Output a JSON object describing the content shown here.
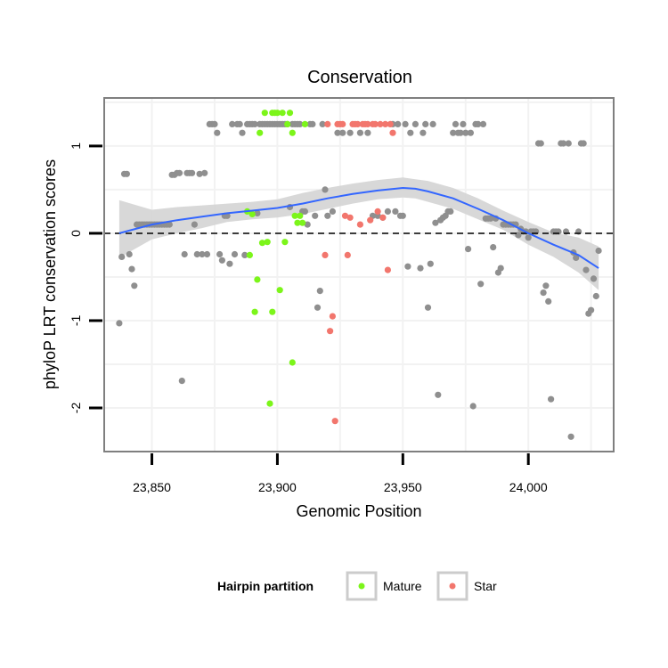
{
  "chart_data": {
    "type": "scatter",
    "title": "Conservation",
    "xlabel": "Genomic Position",
    "ylabel": "phyloP LRT conservation scores",
    "xlim": [
      23831,
      24034
    ],
    "ylim": [
      -2.5,
      1.55
    ],
    "x_ticks": [
      23850,
      23900,
      23950,
      24000
    ],
    "x_tick_labels": [
      "23,850",
      "23,900",
      "23,950",
      "24,000"
    ],
    "y_ticks": [
      1,
      0,
      -1,
      -2
    ],
    "y_tick_labels": [
      "1",
      "0",
      "-1",
      "-2"
    ],
    "grid": true,
    "reference_line": {
      "y": 0,
      "style": "dashed"
    },
    "legend": {
      "title": "Hairpin partition",
      "position": "bottom",
      "entries": [
        "Mature",
        "Star"
      ]
    },
    "colors": {
      "other": "#8f8f8f",
      "Mature": "#7cf51a",
      "Star": "#f2766d",
      "smooth": "#3366ff",
      "ribbon": "#d4d4d4",
      "panel_border": "#7f7f7f",
      "grid": "#f2f2f2"
    },
    "series": [
      {
        "group": "other",
        "points": [
          [
            23837,
            -1.03
          ],
          [
            23838,
            -0.27
          ],
          [
            23839,
            0.68
          ],
          [
            23840,
            0.68
          ],
          [
            23841,
            -0.24
          ],
          [
            23842,
            -0.41
          ],
          [
            23843,
            -0.6
          ],
          [
            23844,
            0.1
          ],
          [
            23845,
            0.1
          ],
          [
            23846,
            0.1
          ],
          [
            23847,
            0.1
          ],
          [
            23848,
            0.1
          ],
          [
            23849,
            0.1
          ],
          [
            23850,
            0.1
          ],
          [
            23851,
            0.1
          ],
          [
            23852,
            0.1
          ],
          [
            23853,
            0.1
          ],
          [
            23854,
            0.1
          ],
          [
            23855,
            0.1
          ],
          [
            23856,
            0.1
          ],
          [
            23857,
            0.1
          ],
          [
            23858,
            0.67
          ],
          [
            23859,
            0.67
          ],
          [
            23860,
            0.69
          ],
          [
            23861,
            0.69
          ],
          [
            23862,
            -1.69
          ],
          [
            23863,
            -0.24
          ],
          [
            23864,
            0.69
          ],
          [
            23865,
            0.69
          ],
          [
            23866,
            0.69
          ],
          [
            23867,
            0.1
          ],
          [
            23868,
            -0.24
          ],
          [
            23869,
            0.68
          ],
          [
            23870,
            -0.24
          ],
          [
            23871,
            0.69
          ],
          [
            23872,
            -0.24
          ],
          [
            23873,
            1.25
          ],
          [
            23874,
            1.25
          ],
          [
            23875,
            1.25
          ],
          [
            23876,
            1.15
          ],
          [
            23877,
            -0.24
          ],
          [
            23878,
            -0.31
          ],
          [
            23879,
            0.2
          ],
          [
            23880,
            0.2
          ],
          [
            23881,
            -0.35
          ],
          [
            23882,
            1.25
          ],
          [
            23883,
            -0.24
          ],
          [
            23884,
            1.25
          ],
          [
            23885,
            1.25
          ],
          [
            23886,
            1.15
          ],
          [
            23887,
            -0.25
          ],
          [
            23888,
            1.25
          ],
          [
            23889,
            1.25
          ],
          [
            23890,
            1.25
          ],
          [
            23891,
            1.25
          ],
          [
            23892,
            0.23
          ],
          [
            23893,
            1.25
          ],
          [
            23894,
            1.25
          ],
          [
            23895,
            1.25
          ],
          [
            23896,
            1.25
          ],
          [
            23897,
            1.25
          ],
          [
            23898,
            1.25
          ],
          [
            23899,
            1.25
          ],
          [
            23900,
            1.25
          ],
          [
            23901,
            1.25
          ],
          [
            23902,
            1.25
          ],
          [
            23903,
            1.25
          ],
          [
            23904,
            1.25
          ],
          [
            23905,
            0.3
          ],
          [
            23906,
            1.25
          ],
          [
            23907,
            1.25
          ],
          [
            23908,
            1.25
          ],
          [
            23909,
            1.25
          ],
          [
            23910,
            0.25
          ],
          [
            23911,
            0.25
          ],
          [
            23912,
            0.1
          ],
          [
            23913,
            1.25
          ],
          [
            23914,
            1.25
          ],
          [
            23915,
            0.2
          ],
          [
            23916,
            -0.85
          ],
          [
            23917,
            -0.66
          ],
          [
            23918,
            1.25
          ],
          [
            23919,
            0.5
          ],
          [
            23920,
            0.2
          ],
          [
            23922,
            0.25
          ],
          [
            23924,
            1.15
          ],
          [
            23926,
            1.15
          ],
          [
            23929,
            1.15
          ],
          [
            23933,
            1.15
          ],
          [
            23936,
            1.15
          ],
          [
            23938,
            0.2
          ],
          [
            23940,
            0.2
          ],
          [
            23942,
            0.18
          ],
          [
            23944,
            0.25
          ],
          [
            23946,
            1.25
          ],
          [
            23947,
            0.25
          ],
          [
            23948,
            1.25
          ],
          [
            23949,
            0.2
          ],
          [
            23950,
            0.2
          ],
          [
            23951,
            1.25
          ],
          [
            23952,
            -0.38
          ],
          [
            23953,
            1.15
          ],
          [
            23955,
            1.25
          ],
          [
            23957,
            -0.4
          ],
          [
            23958,
            1.15
          ],
          [
            23959,
            1.25
          ],
          [
            23960,
            -0.85
          ],
          [
            23961,
            -0.35
          ],
          [
            23962,
            1.25
          ],
          [
            23963,
            0.12
          ],
          [
            23964,
            -1.85
          ],
          [
            23965,
            0.15
          ],
          [
            23966,
            0.18
          ],
          [
            23967,
            0.2
          ],
          [
            23968,
            0.25
          ],
          [
            23969,
            0.25
          ],
          [
            23970,
            1.15
          ],
          [
            23971,
            1.25
          ],
          [
            23972,
            1.15
          ],
          [
            23973,
            1.15
          ],
          [
            23974,
            1.25
          ],
          [
            23975,
            1.15
          ],
          [
            23976,
            -0.18
          ],
          [
            23977,
            1.15
          ],
          [
            23978,
            -1.98
          ],
          [
            23979,
            1.25
          ],
          [
            23980,
            1.25
          ],
          [
            23981,
            -0.58
          ],
          [
            23982,
            1.25
          ],
          [
            23983,
            0.17
          ],
          [
            23984,
            0.17
          ],
          [
            23985,
            0.17
          ],
          [
            23986,
            -0.16
          ],
          [
            23987,
            0.17
          ],
          [
            23988,
            -0.45
          ],
          [
            23989,
            -0.4
          ],
          [
            23990,
            0.1
          ],
          [
            23991,
            0.1
          ],
          [
            23992,
            0.1
          ],
          [
            23993,
            0.1
          ],
          [
            23994,
            0.1
          ],
          [
            23995,
            0.1
          ],
          [
            23996,
            -0.02
          ],
          [
            23997,
            0.05
          ],
          [
            23998,
            0.02
          ],
          [
            23999,
            0.02
          ],
          [
            24000,
            -0.05
          ],
          [
            24001,
            0.02
          ],
          [
            24002,
            0.02
          ],
          [
            24003,
            0.02
          ],
          [
            24004,
            1.03
          ],
          [
            24005,
            1.03
          ],
          [
            24006,
            -0.68
          ],
          [
            24007,
            -0.6
          ],
          [
            24008,
            -0.78
          ],
          [
            24009,
            -1.9
          ],
          [
            24010,
            0.02
          ],
          [
            24011,
            0.02
          ],
          [
            24012,
            0.02
          ],
          [
            24013,
            1.03
          ],
          [
            24014,
            1.03
          ],
          [
            24015,
            0.02
          ],
          [
            24016,
            1.03
          ],
          [
            24017,
            -2.33
          ],
          [
            24018,
            -0.22
          ],
          [
            24019,
            -0.28
          ],
          [
            24020,
            0.02
          ],
          [
            24021,
            1.03
          ],
          [
            24022,
            1.03
          ],
          [
            24023,
            -0.42
          ],
          [
            24024,
            -0.92
          ],
          [
            24025,
            -0.88
          ],
          [
            24026,
            -0.52
          ],
          [
            24027,
            -0.72
          ],
          [
            24028,
            -0.2
          ]
        ]
      },
      {
        "group": "Mature",
        "name": "Mature",
        "points": [
          [
            23888,
            0.25
          ],
          [
            23889,
            -0.25
          ],
          [
            23890,
            0.22
          ],
          [
            23891,
            -0.9
          ],
          [
            23892,
            -0.53
          ],
          [
            23893,
            1.15
          ],
          [
            23894,
            -0.11
          ],
          [
            23895,
            1.38
          ],
          [
            23896,
            -0.1
          ],
          [
            23897,
            -1.95
          ],
          [
            23898,
            1.38
          ],
          [
            23898,
            -0.9
          ],
          [
            23899,
            1.38
          ],
          [
            23900,
            1.38
          ],
          [
            23901,
            -0.65
          ],
          [
            23902,
            1.38
          ],
          [
            23903,
            -0.1
          ],
          [
            23904,
            1.25
          ],
          [
            23905,
            1.38
          ],
          [
            23906,
            1.15
          ],
          [
            23906,
            -1.48
          ],
          [
            23907,
            0.2
          ],
          [
            23908,
            0.12
          ],
          [
            23909,
            0.2
          ],
          [
            23910,
            0.12
          ],
          [
            23911,
            1.25
          ]
        ]
      },
      {
        "group": "Star",
        "name": "Star",
        "points": [
          [
            23919,
            -0.25
          ],
          [
            23920,
            1.25
          ],
          [
            23921,
            -1.12
          ],
          [
            23922,
            -0.95
          ],
          [
            23923,
            -2.15
          ],
          [
            23924,
            1.25
          ],
          [
            23925,
            1.25
          ],
          [
            23926,
            1.25
          ],
          [
            23927,
            0.2
          ],
          [
            23928,
            -0.25
          ],
          [
            23929,
            0.18
          ],
          [
            23930,
            1.25
          ],
          [
            23931,
            1.25
          ],
          [
            23932,
            1.25
          ],
          [
            23933,
            0.1
          ],
          [
            23934,
            1.25
          ],
          [
            23935,
            1.25
          ],
          [
            23936,
            1.25
          ],
          [
            23937,
            0.15
          ],
          [
            23938,
            1.25
          ],
          [
            23939,
            1.25
          ],
          [
            23940,
            0.25
          ],
          [
            23941,
            1.25
          ],
          [
            23942,
            0.18
          ],
          [
            23943,
            1.25
          ],
          [
            23944,
            -0.42
          ],
          [
            23945,
            1.25
          ],
          [
            23946,
            1.15
          ]
        ]
      }
    ],
    "smooth": {
      "x": [
        23837,
        23850,
        23860,
        23870,
        23880,
        23890,
        23900,
        23910,
        23920,
        23930,
        23940,
        23950,
        23955,
        23960,
        23970,
        23980,
        23990,
        24000,
        24010,
        24020,
        24028
      ],
      "y": [
        0.0,
        0.1,
        0.15,
        0.19,
        0.23,
        0.26,
        0.29,
        0.34,
        0.4,
        0.45,
        0.49,
        0.52,
        0.51,
        0.48,
        0.4,
        0.28,
        0.15,
        0.0,
        -0.13,
        -0.25,
        -0.4
      ],
      "ribbon_lower": [
        -0.28,
        -0.07,
        0.0,
        0.06,
        0.13,
        0.16,
        0.18,
        0.22,
        0.28,
        0.34,
        0.39,
        0.41,
        0.4,
        0.36,
        0.28,
        0.16,
        0.04,
        -0.13,
        -0.27,
        -0.45,
        -0.65
      ],
      "ribbon_upper": [
        0.38,
        0.27,
        0.3,
        0.32,
        0.34,
        0.36,
        0.39,
        0.46,
        0.52,
        0.57,
        0.61,
        0.64,
        0.62,
        0.6,
        0.52,
        0.4,
        0.26,
        0.13,
        0.01,
        -0.05,
        -0.15
      ]
    }
  }
}
